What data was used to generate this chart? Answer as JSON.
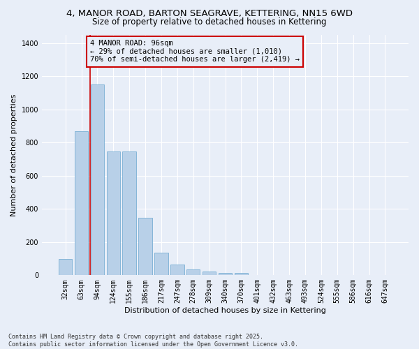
{
  "title_line1": "4, MANOR ROAD, BARTON SEAGRAVE, KETTERING, NN15 6WD",
  "title_line2": "Size of property relative to detached houses in Kettering",
  "xlabel": "Distribution of detached houses by size in Kettering",
  "ylabel": "Number of detached properties",
  "categories": [
    "32sqm",
    "63sqm",
    "94sqm",
    "124sqm",
    "155sqm",
    "186sqm",
    "217sqm",
    "247sqm",
    "278sqm",
    "309sqm",
    "340sqm",
    "370sqm",
    "401sqm",
    "432sqm",
    "463sqm",
    "493sqm",
    "524sqm",
    "555sqm",
    "586sqm",
    "616sqm",
    "647sqm"
  ],
  "values": [
    100,
    870,
    1150,
    745,
    745,
    345,
    135,
    63,
    35,
    22,
    14,
    13,
    0,
    0,
    0,
    0,
    0,
    0,
    0,
    0,
    0
  ],
  "bar_color": "#b8d0e8",
  "bar_edge_color": "#7aafd4",
  "vline_color": "#cc0000",
  "annotation_text": "4 MANOR ROAD: 96sqm\n← 29% of detached houses are smaller (1,010)\n70% of semi-detached houses are larger (2,419) →",
  "annotation_box_color": "#cc0000",
  "ylim": [
    0,
    1450
  ],
  "yticks": [
    0,
    200,
    400,
    600,
    800,
    1000,
    1200,
    1400
  ],
  "background_color": "#e8eef8",
  "grid_color": "#ffffff",
  "footer_text": "Contains HM Land Registry data © Crown copyright and database right 2025.\nContains public sector information licensed under the Open Government Licence v3.0.",
  "title_fontsize": 9.5,
  "subtitle_fontsize": 8.5,
  "axis_label_fontsize": 8,
  "tick_fontsize": 7,
  "annotation_fontsize": 7.5,
  "footer_fontsize": 6
}
